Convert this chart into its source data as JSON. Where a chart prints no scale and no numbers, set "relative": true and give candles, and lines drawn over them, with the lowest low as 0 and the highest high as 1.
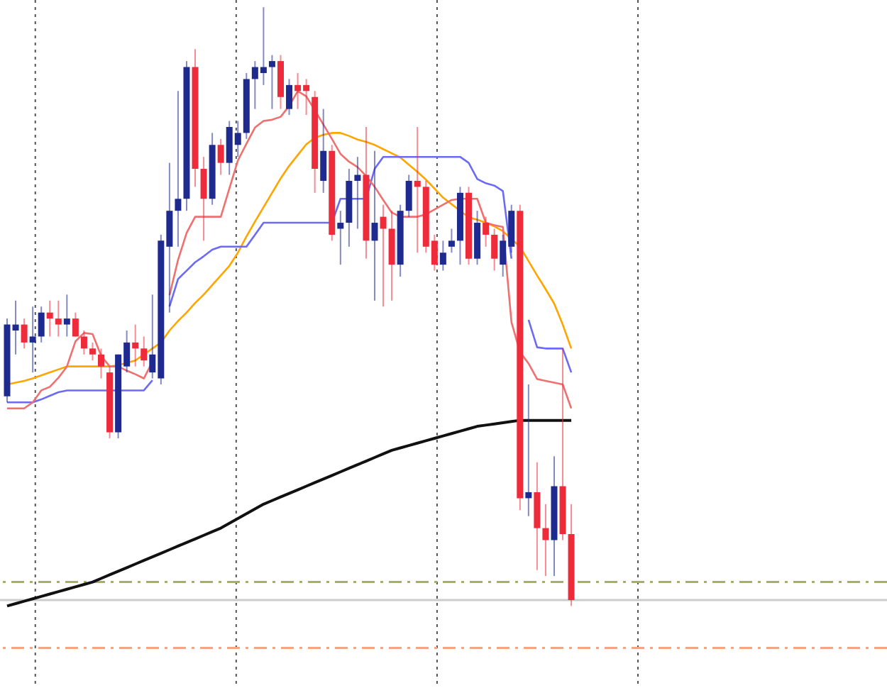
{
  "chart_data": {
    "type": "candlestick",
    "relative": true,
    "categories": [
      null,
      null,
      null,
      null,
      null,
      null,
      null,
      null,
      null,
      null,
      null,
      null,
      null,
      null,
      null,
      null,
      null,
      null,
      null,
      null,
      null,
      null,
      null,
      null,
      null,
      null,
      null,
      null,
      null,
      null,
      null,
      null,
      null,
      null,
      null,
      null,
      null,
      null,
      null,
      null,
      null,
      null,
      null,
      null,
      null,
      null,
      null,
      null,
      null,
      null,
      null,
      null,
      null,
      null,
      null,
      null,
      null,
      null,
      null,
      null,
      null,
      null,
      null,
      null,
      null,
      null,
      null
    ],
    "ohlc": [
      [
        0.35,
        0.48,
        0.34,
        0.47
      ],
      [
        0.46,
        0.51,
        0.42,
        0.47
      ],
      [
        0.47,
        0.48,
        0.43,
        0.44
      ],
      [
        0.44,
        0.5,
        0.39,
        0.45
      ],
      [
        0.45,
        0.5,
        0.44,
        0.49
      ],
      [
        0.49,
        0.51,
        0.45,
        0.48
      ],
      [
        0.48,
        0.51,
        0.45,
        0.47
      ],
      [
        0.47,
        0.52,
        0.45,
        0.48
      ],
      [
        0.48,
        0.49,
        0.45,
        0.45
      ],
      [
        0.45,
        0.46,
        0.42,
        0.43
      ],
      [
        0.43,
        0.44,
        0.41,
        0.42
      ],
      [
        0.42,
        0.43,
        0.38,
        0.4
      ],
      [
        0.39,
        0.4,
        0.28,
        0.29
      ],
      [
        0.29,
        0.42,
        0.28,
        0.42
      ],
      [
        0.4,
        0.46,
        0.39,
        0.44
      ],
      [
        0.44,
        0.47,
        0.4,
        0.43
      ],
      [
        0.43,
        0.45,
        0.4,
        0.41
      ],
      [
        0.39,
        0.52,
        0.38,
        0.42
      ],
      [
        0.38,
        0.62,
        0.37,
        0.61
      ],
      [
        0.6,
        0.74,
        0.49,
        0.66
      ],
      [
        0.66,
        0.86,
        0.6,
        0.68
      ],
      [
        0.68,
        0.91,
        0.66,
        0.9
      ],
      [
        0.9,
        0.93,
        0.7,
        0.73
      ],
      [
        0.73,
        0.75,
        0.61,
        0.68
      ],
      [
        0.68,
        0.79,
        0.67,
        0.77
      ],
      [
        0.77,
        0.78,
        0.72,
        0.74
      ],
      [
        0.74,
        0.81,
        0.72,
        0.8
      ],
      [
        0.77,
        0.81,
        0.75,
        0.79
      ],
      [
        0.79,
        0.89,
        0.78,
        0.88
      ],
      [
        0.88,
        0.91,
        0.83,
        0.9
      ],
      [
        0.89,
        1.0,
        0.87,
        0.9
      ],
      [
        0.9,
        0.92,
        0.83,
        0.91
      ],
      [
        0.91,
        0.92,
        0.83,
        0.85
      ],
      [
        0.83,
        0.88,
        0.82,
        0.87
      ],
      [
        0.87,
        0.89,
        0.83,
        0.86
      ],
      [
        0.87,
        0.88,
        0.82,
        0.86
      ],
      [
        0.85,
        0.86,
        0.69,
        0.73
      ],
      [
        0.71,
        0.83,
        0.69,
        0.76
      ],
      [
        0.76,
        0.77,
        0.61,
        0.62
      ],
      [
        0.63,
        0.66,
        0.57,
        0.64
      ],
      [
        0.64,
        0.73,
        0.6,
        0.71
      ],
      [
        0.71,
        0.75,
        0.63,
        0.72
      ],
      [
        0.72,
        0.8,
        0.58,
        0.61
      ],
      [
        0.61,
        0.76,
        0.51,
        0.64
      ],
      [
        0.65,
        0.67,
        0.5,
        0.63
      ],
      [
        0.63,
        0.66,
        0.51,
        0.57
      ],
      [
        0.57,
        0.67,
        0.55,
        0.66
      ],
      [
        0.66,
        0.72,
        0.65,
        0.71
      ],
      [
        0.71,
        0.8,
        0.59,
        0.7
      ],
      [
        0.7,
        0.71,
        0.59,
        0.6
      ],
      [
        0.61,
        0.62,
        0.56,
        0.57
      ],
      [
        0.57,
        0.61,
        0.56,
        0.59
      ],
      [
        0.6,
        0.63,
        0.59,
        0.61
      ],
      [
        0.61,
        0.7,
        0.57,
        0.69
      ],
      [
        0.69,
        0.7,
        0.57,
        0.58
      ],
      [
        0.58,
        0.66,
        0.57,
        0.64
      ],
      [
        0.64,
        0.65,
        0.6,
        0.62
      ],
      [
        0.62,
        0.63,
        0.56,
        0.58
      ],
      [
        0.57,
        0.62,
        0.55,
        0.61
      ],
      [
        0.6,
        0.67,
        0.59,
        0.66
      ],
      [
        0.66,
        0.67,
        0.16,
        0.18
      ],
      [
        0.18,
        0.37,
        0.15,
        0.19
      ],
      [
        0.19,
        0.24,
        0.06,
        0.13
      ],
      [
        0.13,
        0.17,
        0.05,
        0.11
      ],
      [
        0.11,
        0.25,
        0.05,
        0.2
      ],
      [
        0.2,
        0.43,
        0.11,
        0.12
      ],
      [
        0.12,
        0.17,
        0.0,
        0.01
      ]
    ],
    "colors": [
      "#1f2a8f",
      "#1f2a8f",
      "#ee2b3a",
      "#1f2a8f",
      "#1f2a8f",
      "#ee2b3a",
      "#ee2b3a",
      "#1f2a8f",
      "#ee2b3a",
      "#ee2b3a",
      "#ee2b3a",
      "#ee2b3a",
      "#ee2b3a",
      "#1f2a8f",
      "#1f2a8f",
      "#ee2b3a",
      "#ee2b3a",
      "#1f2a8f",
      "#1f2a8f",
      "#1f2a8f",
      "#1f2a8f",
      "#1f2a8f",
      "#ee2b3a",
      "#ee2b3a",
      "#1f2a8f",
      "#ee2b3a",
      "#1f2a8f",
      "#1f2a8f",
      "#1f2a8f",
      "#1f2a8f",
      "#1f2a8f",
      "#1f2a8f",
      "#ee2b3a",
      "#1f2a8f",
      "#ee2b3a",
      "#ee2b3a",
      "#ee2b3a",
      "#1f2a8f",
      "#ee2b3a",
      "#1f2a8f",
      "#1f2a8f",
      "#1f2a8f",
      "#ee2b3a",
      "#1f2a8f",
      "#ee2b3a",
      "#ee2b3a",
      "#1f2a8f",
      "#1f2a8f",
      "#ee2b3a",
      "#ee2b3a",
      "#ee2b3a",
      "#1f2a8f",
      "#1f2a8f",
      "#1f2a8f",
      "#ee2b3a",
      "#1f2a8f",
      "#ee2b3a",
      "#ee2b3a",
      "#1f2a8f",
      "#1f2a8f",
      "#ee2b3a",
      "#1f2a8f",
      "#ee2b3a",
      "#ee2b3a",
      "#1f2a8f",
      "#ee2b3a",
      "#ee2b3a"
    ],
    "series": [
      {
        "type": "line",
        "color": "#111111",
        "values": [
          0,
          0.004,
          0.008,
          0.012,
          0.016,
          0.02,
          0.024,
          0.028,
          0.032,
          0.036,
          0.04,
          0.046,
          0.052,
          0.058,
          0.064,
          0.07,
          0.076,
          0.082,
          0.088,
          0.094,
          0.1,
          0.106,
          0.112,
          0.118,
          0.124,
          0.13,
          0.138,
          0.146,
          0.154,
          0.162,
          0.17,
          0.176,
          0.182,
          0.188,
          0.194,
          0.2,
          0.206,
          0.212,
          0.218,
          0.224,
          0.23,
          0.236,
          0.242,
          0.248,
          0.254,
          0.26,
          0.264,
          0.268,
          0.272,
          0.276,
          0.28,
          0.284,
          0.288,
          0.292,
          0.296,
          0.3,
          0.302,
          0.304,
          0.306,
          0.308,
          0.31,
          0.31,
          0.31,
          0.31,
          0.31,
          0.31,
          0.31
        ]
      },
      {
        "type": "line",
        "color": "#ffa500",
        "values": [
          0.37,
          0.373,
          0.376,
          0.38,
          0.385,
          0.39,
          0.395,
          0.4,
          0.4,
          0.4,
          0.4,
          0.4,
          0.4,
          0.402,
          0.406,
          0.41,
          0.42,
          0.43,
          0.44,
          0.46,
          0.476,
          0.49,
          0.506,
          0.52,
          0.536,
          0.552,
          0.568,
          0.59,
          0.617,
          0.642,
          0.666,
          0.69,
          0.714,
          0.735,
          0.753,
          0.771,
          0.782,
          0.787,
          0.79,
          0.79,
          0.785,
          0.779,
          0.775,
          0.77,
          0.763,
          0.756,
          0.749,
          0.737,
          0.725,
          0.712,
          0.697,
          0.682,
          0.671,
          0.66,
          0.649,
          0.645,
          0.64,
          0.634,
          0.626,
          0.613,
          0.6,
          0.576,
          0.552,
          0.529,
          0.505,
          0.47,
          0.43
        ]
      },
      {
        "type": "line",
        "color": "#6b6bf5",
        "values": [
          0.34,
          0.34,
          0.34,
          0.34,
          0.345,
          0.351,
          0.357,
          0.36,
          0.36,
          0.36,
          0.36,
          0.36,
          0.36,
          0.36,
          0.36,
          0.36,
          0.36,
          0.377,
          null,
          0.5,
          0.546,
          0.56,
          0.574,
          0.584,
          0.595,
          0.6,
          0.6,
          0.6,
          0.6,
          0.62,
          0.64,
          0.64,
          0.64,
          0.64,
          0.64,
          0.64,
          0.64,
          0.64,
          0.64,
          0.68,
          0.68,
          0.68,
          0.68,
          0.73,
          0.75,
          0.75,
          0.75,
          0.75,
          0.75,
          0.75,
          0.75,
          0.75,
          0.75,
          0.75,
          0.74,
          0.713,
          0.706,
          0.702,
          0.693,
          0.58,
          null,
          0.478,
          0.432,
          0.43,
          0.43,
          0.43,
          0.39
        ]
      },
      {
        "type": "line",
        "color": "#f07070",
        "values": [
          0.33,
          0.33,
          0.33,
          0.34,
          0.36,
          0.366,
          0.381,
          0.4,
          0.442,
          0.456,
          0.454,
          0.418,
          0.4,
          0.4,
          0.393,
          0.387,
          0.38,
          0.408,
          null,
          0.519,
          0.578,
          0.623,
          0.65,
          0.65,
          0.65,
          0.65,
          0.697,
          0.744,
          0.772,
          0.799,
          0.81,
          0.812,
          0.817,
          0.835,
          0.86,
          0.851,
          0.828,
          0.804,
          0.78,
          0.755,
          0.742,
          0.733,
          0.718,
          0.7,
          0.678,
          0.657,
          0.65,
          0.65,
          0.65,
          0.654,
          0.662,
          0.67,
          0.678,
          0.68,
          0.68,
          0.68,
          0.64,
          0.636,
          0.633,
          0.474,
          0.424,
          0.405,
          0.379,
          0.376,
          0.373,
          0.37,
          0.33
        ]
      }
    ],
    "ref_lines": [
      {
        "axis": "y",
        "value": 0.04,
        "color": "#a8b060",
        "line_style": "dashed"
      },
      {
        "axis": "y",
        "value": 0.01,
        "color": "#cccccc",
        "line_style": "solid"
      },
      {
        "axis": "y",
        "value": -0.07,
        "color": "#f4a582",
        "line_style": "dashed"
      }
    ]
  }
}
